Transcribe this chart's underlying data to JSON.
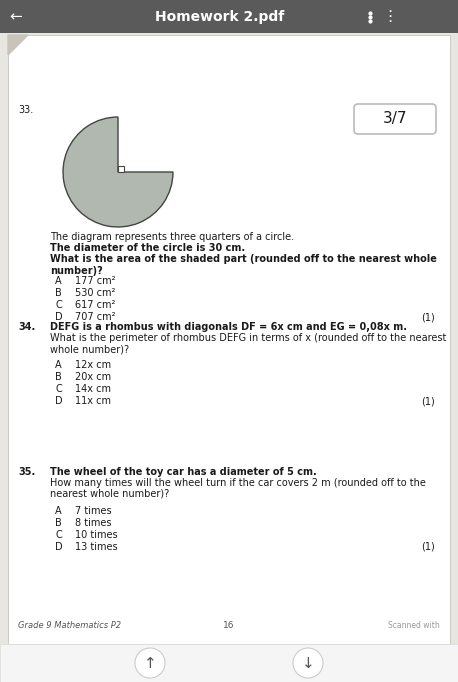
{
  "title": "Homework 2.pdf",
  "page_badge": "3/7",
  "bg_color": "#e8e6e0",
  "content_bg": "#ffffff",
  "header_bg": "#5a5a5a",
  "header_text_color": "#ffffff",
  "q33_num": "33.",
  "q33_diagram_shaded_color": "#b0b8b0",
  "q33_diagram_outline_color": "#444444",
  "q33_text1": "The diagram represents three quarters of a circle.",
  "q33_text2": "The diameter of the circle is 30 cm.",
  "q33_text3": "What is the area of the shaded part (rounded off to the nearest whole number)?",
  "q33_options": [
    [
      "A",
      "177 cm²"
    ],
    [
      "B",
      "530 cm²"
    ],
    [
      "C",
      "617 cm²"
    ],
    [
      "D",
      "707 cm²"
    ]
  ],
  "q33_mark": "(1)",
  "q34_num": "34.",
  "q34_text1": "DEFG is a rhombus with diagonals DF = 6x cm and EG = 0,08x m.",
  "q34_text2": "What is the perimeter of rhombus DEFG in terms of x (rounded off to the nearest\nwhole number)?",
  "q34_options": [
    [
      "A",
      "12x cm"
    ],
    [
      "B",
      "20x cm"
    ],
    [
      "C",
      "14x cm"
    ],
    [
      "D",
      "11x cm"
    ]
  ],
  "q34_mark": "(1)",
  "q35_num": "35.",
  "q35_text1": "The wheel of the toy car has a diameter of 5 cm.",
  "q35_text2": "How many times will the wheel turn if the car covers 2 m (rounded off to the\nnearest whole number)?",
  "q35_options": [
    [
      "A",
      "7 times"
    ],
    [
      "B",
      "8 times"
    ],
    [
      "C",
      "10 times"
    ],
    [
      "D",
      "13 times"
    ]
  ],
  "q35_mark": "(1)",
  "footer_left": "Grade 9 Mathematics P2",
  "footer_center": "16",
  "footer_right": "Scanned with"
}
